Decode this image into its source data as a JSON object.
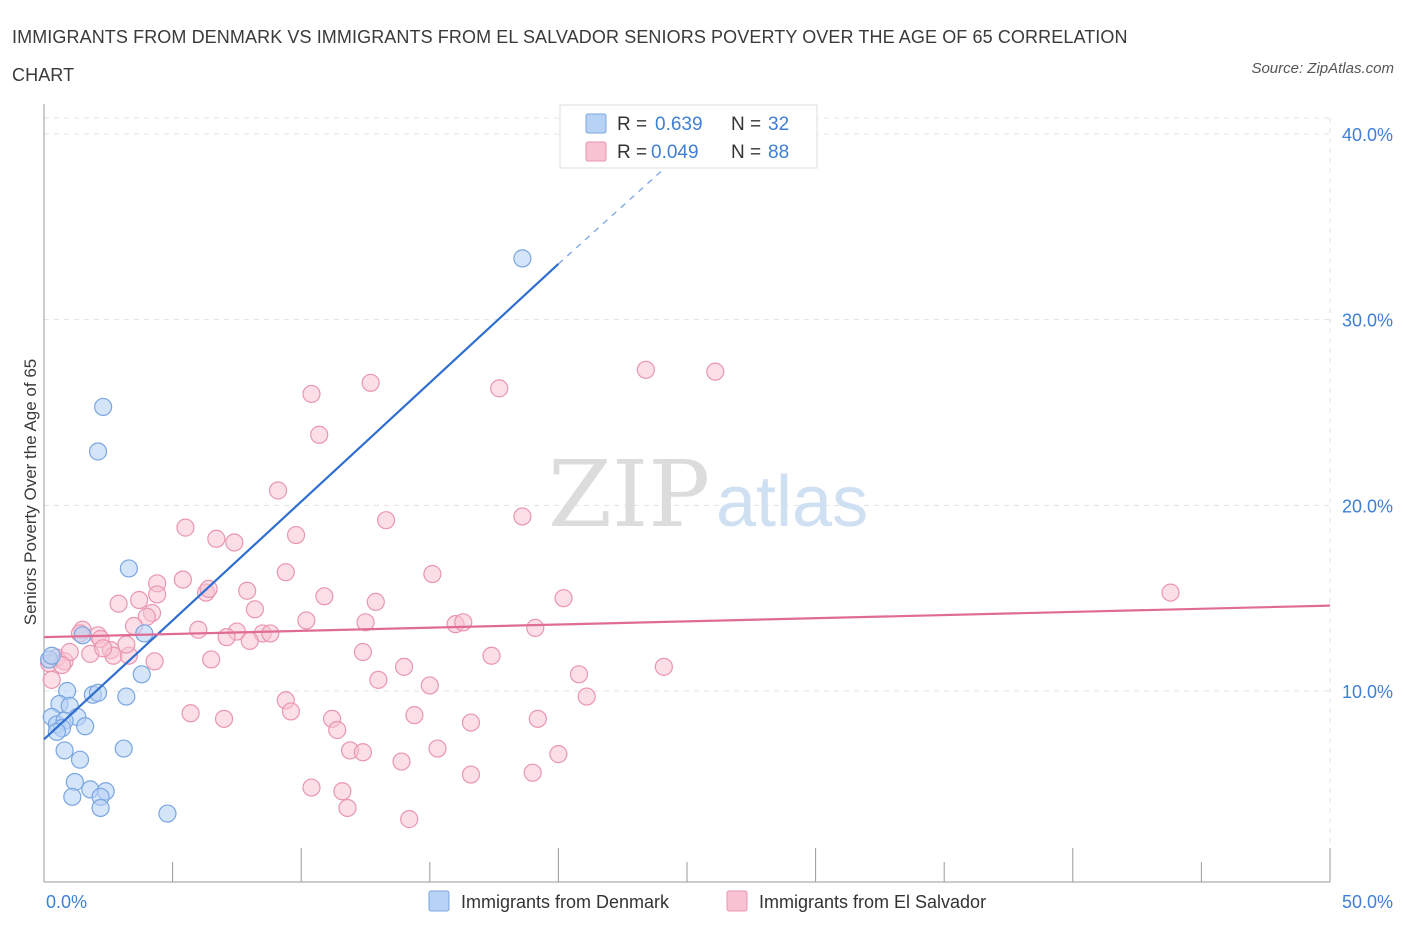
{
  "title": "IMMIGRANTS FROM DENMARK VS IMMIGRANTS FROM EL SALVADOR SENIORS POVERTY OVER THE AGE OF 65 CORRELATION CHART",
  "source": "Source: ZipAtlas.com",
  "watermark": {
    "zip": "ZIP",
    "atlas": "atlas"
  },
  "colors": {
    "denmark_fill": "#b8d2f5",
    "denmark_stroke": "#7aa6e0",
    "denmark_line": "#2f6fd0",
    "elsalvador_fill": "#f8c2d2",
    "elsalvador_stroke": "#e996b0",
    "elsalvador_line": "#e06c94",
    "tick_label": "#3f7fd4"
  },
  "legend": {
    "r_label": "R =",
    "n_label": "N =",
    "rows": [
      {
        "r": "0.639",
        "n": "32"
      },
      {
        "r": "0.049",
        "n": "88"
      }
    ]
  },
  "chart_data": {
    "type": "scatter",
    "title": "IMMIGRANTS FROM DENMARK VS IMMIGRANTS FROM EL SALVADOR SENIORS POVERTY OVER THE AGE OF 65 CORRELATION CHART",
    "xlabel": "",
    "ylabel": "Seniors Poverty Over the Age of 65",
    "xlim": [
      0,
      50
    ],
    "ylim": [
      2,
      42
    ],
    "x_tick_labels": [
      "0.0%",
      "50.0%"
    ],
    "y_ticks": [
      10,
      20,
      30,
      40
    ],
    "y_tick_labels": [
      "10.0%",
      "20.0%",
      "30.0%",
      "40.0%"
    ],
    "grid": true,
    "legend_position": "top-center",
    "series": [
      {
        "name": "Immigrants from Denmark",
        "R": 0.639,
        "N": 32,
        "trend": {
          "x": [
            0,
            20
          ],
          "y": [
            7.4,
            33.0
          ],
          "dash_to": [
            24,
            38.0
          ]
        },
        "points": [
          [
            18.6,
            33.3
          ],
          [
            2.3,
            25.3
          ],
          [
            2.1,
            22.9
          ],
          [
            3.3,
            16.6
          ],
          [
            3.9,
            13.1
          ],
          [
            1.5,
            13.0
          ],
          [
            3.8,
            10.9
          ],
          [
            0.2,
            11.7
          ],
          [
            0.9,
            10.0
          ],
          [
            1.9,
            9.8
          ],
          [
            2.1,
            9.9
          ],
          [
            3.2,
            9.7
          ],
          [
            0.6,
            9.3
          ],
          [
            1.0,
            9.2
          ],
          [
            0.3,
            8.6
          ],
          [
            0.5,
            8.2
          ],
          [
            1.3,
            8.6
          ],
          [
            0.8,
            8.4
          ],
          [
            0.7,
            8.0
          ],
          [
            1.6,
            8.1
          ],
          [
            0.5,
            7.8
          ],
          [
            3.1,
            6.9
          ],
          [
            0.8,
            6.8
          ],
          [
            1.4,
            6.3
          ],
          [
            1.2,
            5.1
          ],
          [
            1.8,
            4.7
          ],
          [
            2.4,
            4.6
          ],
          [
            1.1,
            4.3
          ],
          [
            2.2,
            4.3
          ],
          [
            2.2,
            3.7
          ],
          [
            4.8,
            3.4
          ],
          [
            0.3,
            11.9
          ]
        ]
      },
      {
        "name": "Immigrants from El Salvador",
        "R": 0.049,
        "N": 88,
        "trend": {
          "x": [
            0,
            50
          ],
          "y": [
            12.9,
            14.6
          ]
        },
        "points": [
          [
            23.4,
            27.3
          ],
          [
            26.1,
            27.2
          ],
          [
            12.7,
            26.6
          ],
          [
            17.7,
            26.3
          ],
          [
            10.4,
            26.0
          ],
          [
            10.7,
            23.8
          ],
          [
            9.1,
            20.8
          ],
          [
            13.3,
            19.2
          ],
          [
            18.6,
            19.4
          ],
          [
            5.5,
            18.8
          ],
          [
            6.7,
            18.2
          ],
          [
            7.4,
            18.0
          ],
          [
            9.8,
            18.4
          ],
          [
            9.4,
            16.4
          ],
          [
            15.1,
            16.3
          ],
          [
            5.4,
            16.0
          ],
          [
            4.4,
            15.8
          ],
          [
            4.4,
            15.2
          ],
          [
            6.3,
            15.3
          ],
          [
            7.9,
            15.4
          ],
          [
            10.9,
            15.1
          ],
          [
            12.9,
            14.8
          ],
          [
            20.2,
            15.0
          ],
          [
            3.7,
            14.9
          ],
          [
            2.9,
            14.7
          ],
          [
            6.4,
            15.5
          ],
          [
            8.2,
            14.4
          ],
          [
            4.2,
            14.2
          ],
          [
            4.0,
            14.0
          ],
          [
            10.2,
            13.8
          ],
          [
            12.5,
            13.7
          ],
          [
            16.0,
            13.6
          ],
          [
            16.3,
            13.7
          ],
          [
            3.5,
            13.5
          ],
          [
            6.0,
            13.3
          ],
          [
            7.5,
            13.2
          ],
          [
            8.5,
            13.1
          ],
          [
            8.8,
            13.1
          ],
          [
            19.1,
            13.4
          ],
          [
            1.5,
            13.3
          ],
          [
            1.4,
            13.1
          ],
          [
            2.1,
            13.0
          ],
          [
            2.2,
            12.8
          ],
          [
            7.1,
            12.9
          ],
          [
            8.0,
            12.7
          ],
          [
            12.4,
            12.1
          ],
          [
            1.8,
            12.0
          ],
          [
            2.6,
            12.2
          ],
          [
            2.7,
            11.9
          ],
          [
            3.3,
            11.9
          ],
          [
            0.5,
            11.8
          ],
          [
            0.8,
            11.6
          ],
          [
            4.3,
            11.6
          ],
          [
            6.5,
            11.7
          ],
          [
            14.0,
            11.3
          ],
          [
            17.4,
            11.9
          ],
          [
            24.1,
            11.3
          ],
          [
            20.8,
            10.9
          ],
          [
            13.0,
            10.6
          ],
          [
            15.0,
            10.3
          ],
          [
            21.1,
            9.7
          ],
          [
            9.4,
            9.5
          ],
          [
            9.6,
            8.9
          ],
          [
            5.7,
            8.8
          ],
          [
            7.0,
            8.5
          ],
          [
            11.2,
            8.5
          ],
          [
            14.4,
            8.7
          ],
          [
            16.6,
            8.3
          ],
          [
            19.2,
            8.5
          ],
          [
            11.4,
            7.9
          ],
          [
            11.9,
            6.8
          ],
          [
            12.4,
            6.7
          ],
          [
            15.3,
            6.9
          ],
          [
            20.0,
            6.6
          ],
          [
            13.9,
            6.2
          ],
          [
            16.6,
            5.5
          ],
          [
            19.0,
            5.6
          ],
          [
            10.4,
            4.8
          ],
          [
            11.6,
            4.6
          ],
          [
            11.8,
            3.7
          ],
          [
            14.2,
            3.1
          ],
          [
            43.8,
            15.3
          ],
          [
            0.2,
            11.5
          ],
          [
            1.0,
            12.1
          ],
          [
            3.2,
            12.5
          ],
          [
            0.3,
            10.6
          ],
          [
            2.3,
            12.3
          ],
          [
            0.7,
            11.4
          ]
        ]
      }
    ]
  },
  "bottom_legend": [
    {
      "label": "Immigrants from Denmark"
    },
    {
      "label": "Immigrants from El Salvador"
    }
  ]
}
